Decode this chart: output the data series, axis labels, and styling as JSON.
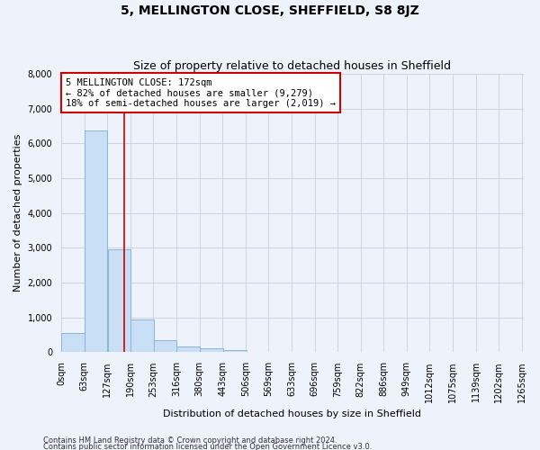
{
  "title": "5, MELLINGTON CLOSE, SHEFFIELD, S8 8JZ",
  "subtitle": "Size of property relative to detached houses in Sheffield",
  "xlabel": "Distribution of detached houses by size in Sheffield",
  "ylabel": "Number of detached properties",
  "footnote1": "Contains HM Land Registry data © Crown copyright and database right 2024.",
  "footnote2": "Contains public sector information licensed under the Open Government Licence v3.0.",
  "annotation_title": "5 MELLINGTON CLOSE: 172sqm",
  "annotation_line1": "← 82% of detached houses are smaller (9,279)",
  "annotation_line2": "18% of semi-detached houses are larger (2,019) →",
  "bar_color": "#c8dff5",
  "bar_edge_color": "#8ab4d8",
  "vline_color": "#cc0000",
  "vline_x": 172,
  "bar_left_edges": [
    0,
    63,
    127,
    190,
    253,
    316,
    380,
    443,
    506,
    569,
    633,
    696,
    759,
    822,
    886,
    949,
    1012,
    1075,
    1139,
    1202
  ],
  "bar_heights": [
    550,
    6380,
    2960,
    950,
    340,
    160,
    110,
    70,
    0,
    0,
    0,
    0,
    0,
    0,
    0,
    0,
    0,
    0,
    0,
    0
  ],
  "bin_width": 63,
  "xlim": [
    0,
    1265
  ],
  "ylim": [
    0,
    8000
  ],
  "yticks": [
    0,
    1000,
    2000,
    3000,
    4000,
    5000,
    6000,
    7000,
    8000
  ],
  "xtick_labels": [
    "0sqm",
    "63sqm",
    "127sqm",
    "190sqm",
    "253sqm",
    "316sqm",
    "380sqm",
    "443sqm",
    "506sqm",
    "569sqm",
    "633sqm",
    "696sqm",
    "759sqm",
    "822sqm",
    "886sqm",
    "949sqm",
    "1012sqm",
    "1075sqm",
    "1139sqm",
    "1202sqm",
    "1265sqm"
  ],
  "grid_color": "#c8cfe0",
  "bg_color": "#eef2fa",
  "plot_bg_color": "#edf2fb",
  "annotation_box_color": "#ffffff",
  "annotation_box_edge": "#cc0000",
  "title_fontsize": 10,
  "subtitle_fontsize": 9,
  "axis_label_fontsize": 8,
  "tick_fontsize": 7,
  "annotation_fontsize": 7.5
}
